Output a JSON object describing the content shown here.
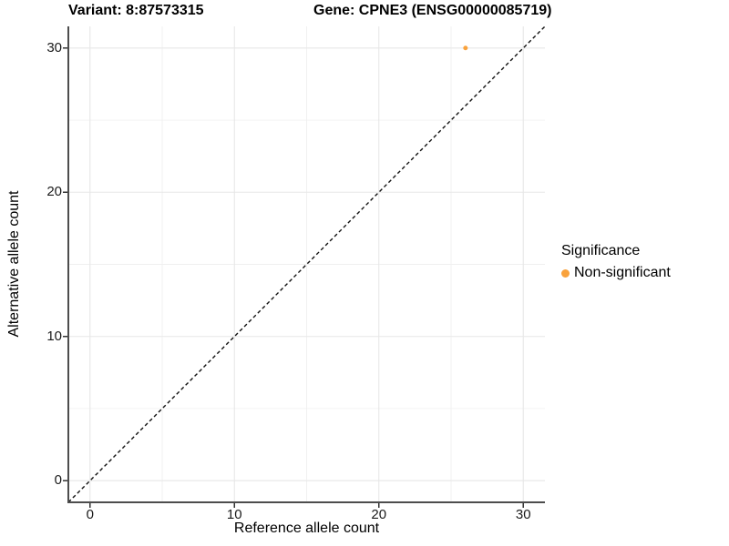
{
  "titles": {
    "variant": "Variant: 8:87573315",
    "gene": "Gene: CPNE3 (ENSG00000085719)"
  },
  "axes": {
    "x": {
      "label": "Reference allele count",
      "ticks": [
        0,
        10,
        20,
        30
      ],
      "minor_ticks": [
        5,
        15,
        25
      ],
      "range": [
        -1.5,
        31.5
      ]
    },
    "y": {
      "label": "Alternative allele count",
      "ticks": [
        0,
        10,
        20,
        30
      ],
      "minor_ticks": [
        5,
        15,
        25
      ],
      "range": [
        -1.5,
        31.5
      ]
    }
  },
  "legend": {
    "title": "Significance",
    "items": [
      {
        "label": "Non-significant",
        "color": "#F9A23C"
      }
    ]
  },
  "colors": {
    "point": "#F9A23C",
    "grid_major": "#e7e7e7",
    "grid_minor": "#f0f0f0",
    "axis_line": "#4d4d4d",
    "tick_mark": "#333333",
    "dashed_line": "#111111",
    "background": "#ffffff"
  },
  "chart_data": {
    "type": "scatter",
    "title": "Variant: 8:87573315 — Gene: CPNE3 (ENSG00000085719)",
    "xlabel": "Reference allele count",
    "ylabel": "Alternative allele count",
    "xlim": [
      0,
      30
    ],
    "ylim": [
      0,
      30
    ],
    "grid": true,
    "legend_position": "right",
    "series": [
      {
        "name": "Non-significant",
        "color": "#F9A23C",
        "points": [
          [
            26,
            30
          ]
        ]
      }
    ],
    "reference_line": {
      "type": "identity y=x",
      "style": "dashed",
      "color": "#111111",
      "span": [
        -1.5,
        31.5
      ]
    }
  }
}
